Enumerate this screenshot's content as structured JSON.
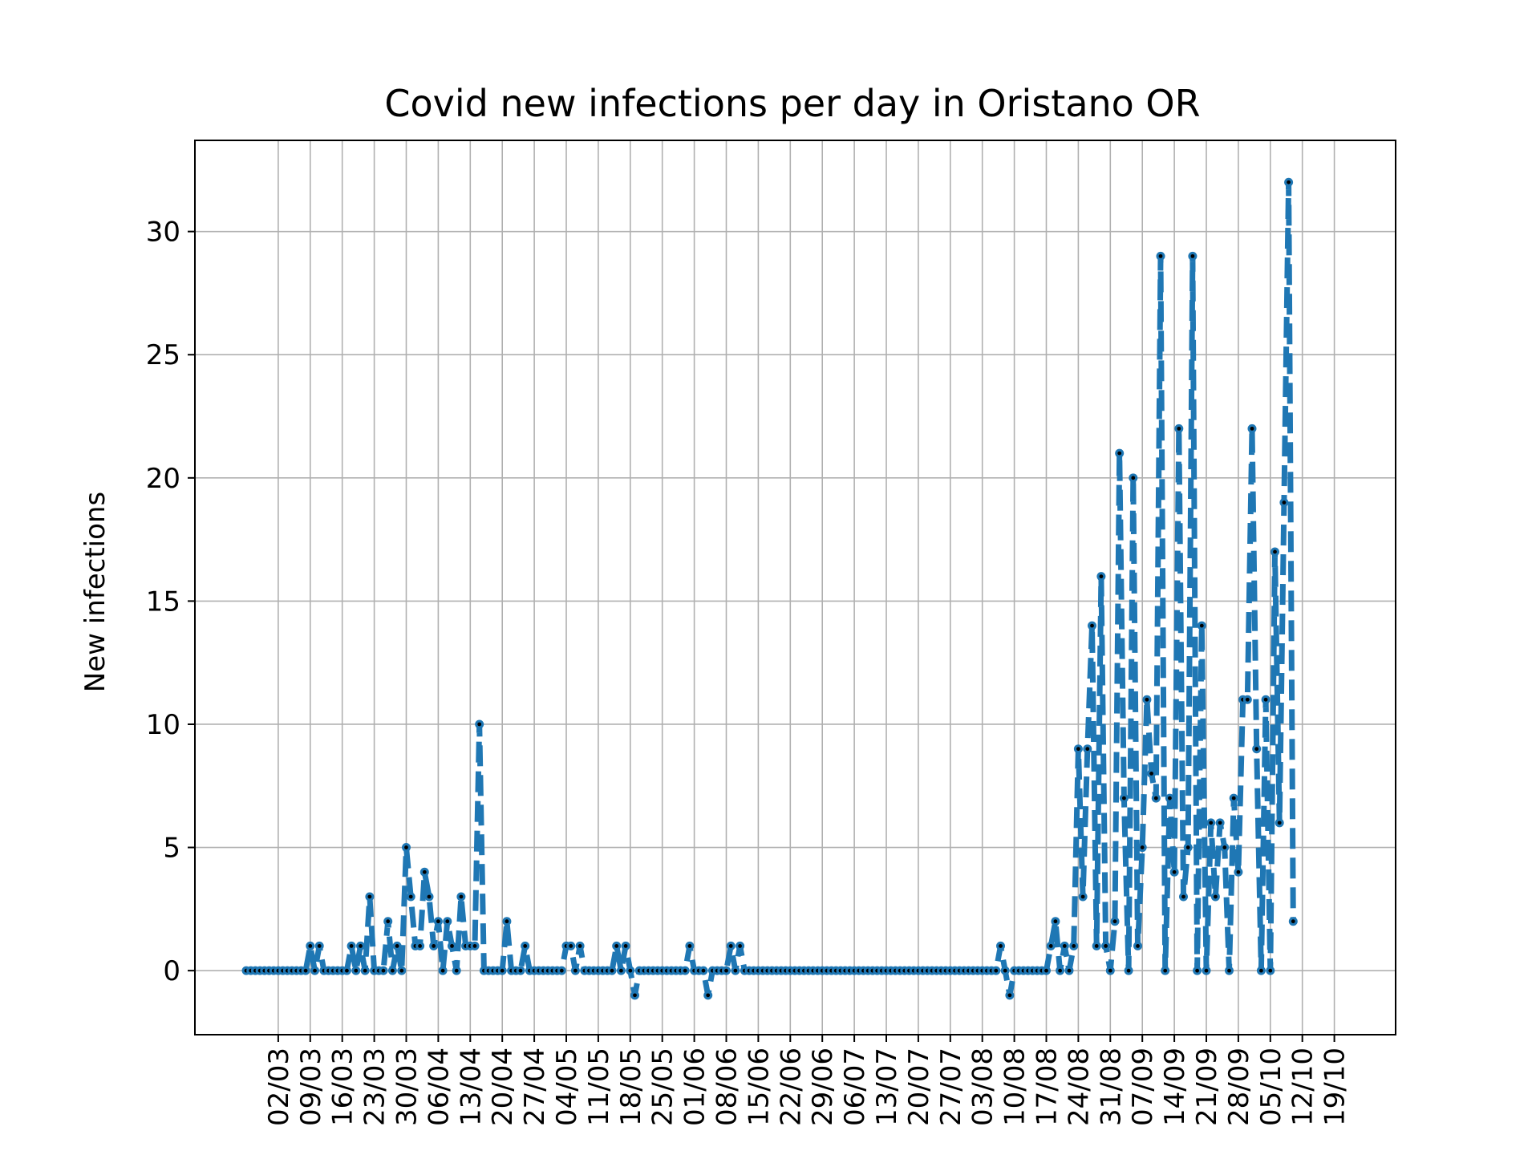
{
  "chart_data": {
    "type": "line",
    "title": "Covid new infections per day in Oristano OR",
    "xlabel": "",
    "ylabel": "New infections",
    "ylim": [
      -2.6,
      33.7
    ],
    "yticks": [
      0,
      5,
      10,
      15,
      20,
      25,
      30
    ],
    "xticks": [
      "02/03",
      "09/03",
      "16/03",
      "23/03",
      "30/03",
      "06/04",
      "13/04",
      "20/04",
      "27/04",
      "04/05",
      "11/05",
      "18/05",
      "25/05",
      "01/06",
      "08/06",
      "15/06",
      "22/06",
      "29/06",
      "06/07",
      "13/07",
      "20/07",
      "27/07",
      "03/08",
      "10/08",
      "17/08",
      "24/08",
      "31/08",
      "07/09",
      "14/09",
      "21/09",
      "28/09",
      "05/10",
      "12/10",
      "19/10"
    ],
    "grid": true,
    "x_start": "24/02",
    "x_end": "20/10",
    "colors": {
      "line": "#1f77b4",
      "marker_center": "#000000",
      "grid": "#b0b0b0"
    },
    "series": [
      {
        "values": [
          0,
          0,
          0,
          0,
          0,
          0,
          0,
          0,
          0,
          0,
          0,
          0,
          0,
          0,
          1,
          0,
          1,
          0,
          0,
          0,
          0,
          0,
          0,
          1,
          0,
          1,
          0,
          3,
          0,
          0,
          0,
          2,
          0,
          1,
          0,
          5,
          3,
          1,
          1,
          4,
          3,
          1,
          2,
          0,
          2,
          1,
          0,
          3,
          1,
          1,
          1,
          10,
          0,
          0,
          0,
          0,
          0,
          2,
          0,
          0,
          0,
          1,
          0,
          0,
          0,
          0,
          0,
          0,
          0,
          0,
          1,
          1,
          0,
          1,
          0,
          0,
          0,
          0,
          0,
          0,
          0,
          1,
          0,
          1,
          0,
          -1,
          0,
          0,
          0,
          0,
          0,
          0,
          0,
          0,
          0,
          0,
          0,
          1,
          0,
          0,
          0,
          -1,
          0,
          0,
          0,
          0,
          1,
          0,
          1,
          0,
          0,
          0,
          0,
          0,
          0,
          0,
          0,
          0,
          0,
          0,
          0,
          0,
          0,
          0,
          0,
          0,
          0,
          0,
          0,
          0,
          0,
          0,
          0,
          0,
          0,
          0,
          0,
          0,
          0,
          0,
          0,
          0,
          0,
          0,
          0,
          0,
          0,
          0,
          0,
          0,
          0,
          0,
          0,
          0,
          0,
          0,
          0,
          0,
          0,
          0,
          0,
          0,
          0,
          0,
          0,
          1,
          0,
          -1,
          0,
          0,
          0,
          0,
          0,
          0,
          0,
          0,
          1,
          2,
          0,
          1,
          0,
          1,
          9,
          3,
          9,
          14,
          1,
          16,
          1,
          0,
          2,
          21,
          7,
          0,
          20,
          1,
          5,
          11,
          8,
          7,
          29,
          0,
          7,
          4,
          22,
          3,
          5,
          29,
          0,
          14,
          0,
          6,
          3,
          6,
          5,
          0,
          7,
          4,
          11,
          11,
          22,
          9,
          0,
          11,
          0,
          17,
          6,
          19,
          32,
          2
        ]
      }
    ]
  }
}
